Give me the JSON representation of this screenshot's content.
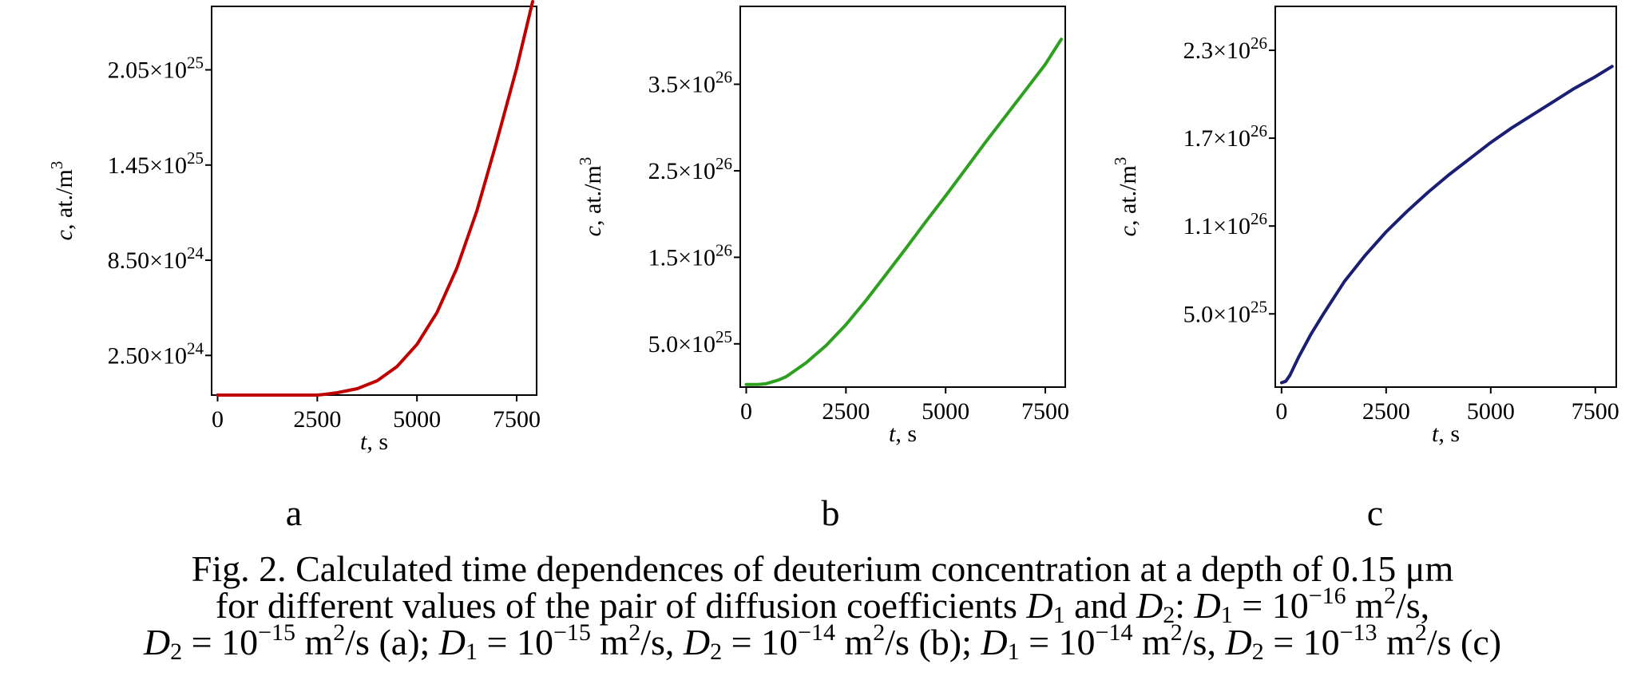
{
  "chart_data": [
    {
      "type": "line",
      "panel_label": "a",
      "xlabel": {
        "var": "t",
        "rest": ", s"
      },
      "ylabel": {
        "var": "c",
        "rest": ", at./m",
        "sup": "3"
      },
      "xlim": [
        -150,
        8000
      ],
      "ylim": [
        0,
        2.45e+25
      ],
      "xticks": [
        {
          "value": 0,
          "label": "0"
        },
        {
          "value": 2500,
          "label": "2500"
        },
        {
          "value": 5000,
          "label": "5000"
        },
        {
          "value": 7500,
          "label": "7500"
        }
      ],
      "yticks": [
        {
          "value": 2.5e+24,
          "mant": "2.50",
          "exp": "24"
        },
        {
          "value": 8.5e+24,
          "mant": "8.50",
          "exp": "24"
        },
        {
          "value": 1.45e+25,
          "mant": "1.45",
          "exp": "25"
        },
        {
          "value": 2.05e+25,
          "mant": "2.05",
          "exp": "25"
        }
      ],
      "series": [
        {
          "color": "#c00000",
          "x": [
            0,
            500,
            1000,
            1500,
            2000,
            2500,
            2700,
            3000,
            3500,
            4000,
            4500,
            5000,
            5500,
            6000,
            6500,
            7000,
            7500,
            7900
          ],
          "y": [
            0,
            0,
            0,
            0,
            0,
            0,
            5e+22,
            1.5e+23,
            4e+23,
            9e+23,
            1.8e+24,
            3.2e+24,
            5.2e+24,
            8e+24,
            1.16e+25,
            1.6e+25,
            2.06e+25,
            2.48e+25
          ]
        }
      ]
    },
    {
      "type": "line",
      "panel_label": "b",
      "xlabel": {
        "var": "t",
        "rest": ", s"
      },
      "ylabel": {
        "var": "c",
        "rest": ", at./m",
        "sup": "3"
      },
      "xlim": [
        -150,
        8000
      ],
      "ylim": [
        0,
        4.4e+26
      ],
      "xticks": [
        {
          "value": 0,
          "label": "0"
        },
        {
          "value": 2500,
          "label": "2500"
        },
        {
          "value": 5000,
          "label": "5000"
        },
        {
          "value": 7500,
          "label": "7500"
        }
      ],
      "yticks": [
        {
          "value": 5e+25,
          "mant": "5.0",
          "exp": "25"
        },
        {
          "value": 1.5e+26,
          "mant": "1.5",
          "exp": "26"
        },
        {
          "value": 2.5e+26,
          "mant": "2.5",
          "exp": "26"
        },
        {
          "value": 3.5e+26,
          "mant": "3.5",
          "exp": "26"
        }
      ],
      "series": [
        {
          "color": "#2ea01f",
          "x": [
            0,
            300,
            500,
            800,
            1000,
            1500,
            2000,
            2500,
            3000,
            3500,
            4000,
            4500,
            5000,
            5500,
            6000,
            6500,
            7000,
            7500,
            7900
          ],
          "y": [
            3e+24,
            3e+24,
            4e+24,
            8e+24,
            1.2e+25,
            2.8e+25,
            4.8e+25,
            7.2e+25,
            1e+26,
            1.3e+26,
            1.6e+26,
            1.91e+26,
            2.21e+26,
            2.52e+26,
            2.83e+26,
            3.13e+26,
            3.43e+26,
            3.73e+26,
            4.02e+26
          ]
        }
      ]
    },
    {
      "type": "line",
      "panel_label": "c",
      "xlabel": {
        "var": "t",
        "rest": ", s"
      },
      "ylabel": {
        "var": "c",
        "rest": ", at./m",
        "sup": "3"
      },
      "xlim": [
        -150,
        8000
      ],
      "ylim": [
        0,
        2.6e+26
      ],
      "xticks": [
        {
          "value": 0,
          "label": "0"
        },
        {
          "value": 2500,
          "label": "2500"
        },
        {
          "value": 5000,
          "label": "5000"
        },
        {
          "value": 7500,
          "label": "7500"
        }
      ],
      "yticks": [
        {
          "value": 5e+25,
          "mant": "5.0",
          "exp": "25"
        },
        {
          "value": 1.1e+26,
          "mant": "1.1",
          "exp": "26"
        },
        {
          "value": 1.7e+26,
          "mant": "1.7",
          "exp": "26"
        },
        {
          "value": 2.3e+26,
          "mant": "2.3",
          "exp": "26"
        }
      ],
      "series": [
        {
          "color": "#1a1f73",
          "x": [
            0,
            100,
            200,
            400,
            700,
            1000,
            1500,
            2000,
            2500,
            3000,
            3500,
            4000,
            4500,
            5000,
            5500,
            6000,
            6500,
            7000,
            7500,
            7900
          ],
          "y": [
            3e+24,
            4e+24,
            8e+24,
            2e+25,
            3.6e+25,
            5e+25,
            7.2e+25,
            9e+25,
            1.06e+26,
            1.2e+26,
            1.33e+26,
            1.45e+26,
            1.56e+26,
            1.67e+26,
            1.77e+26,
            1.86e+26,
            1.95e+26,
            2.04e+26,
            2.12e+26,
            2.19e+26
          ]
        }
      ]
    }
  ],
  "caption": {
    "line1": "Fig. 2. Calculated time dependences of deuterium concentration at a depth of 0.15 μm",
    "line2": {
      "pre": "for different values of the pair of diffusion coefficients ",
      "D": "D",
      "s1": "1",
      "and": " and ",
      "s2": "2",
      "colon": ": ",
      "eq_a1": " = 10",
      "exp_a1": "−16",
      "unit": " m",
      "unit_sup": "2",
      "unit_tail": "/s,"
    },
    "line3": {
      "eq_a2": " = 10",
      "exp_a2": "−15",
      "tail_a": "/s (a); ",
      "eq_b1": " = 10",
      "exp_b1": "−15",
      "tail_b1": "/s, ",
      "eq_b2": " = 10",
      "exp_b2": "−14",
      "tail_b": "/s (b); ",
      "eq_c1": " = 10",
      "exp_c1": "−14",
      "tail_c1": "/s, ",
      "eq_c2": " = 10",
      "exp_c2": "−13",
      "tail_c": "/s (c)"
    }
  }
}
